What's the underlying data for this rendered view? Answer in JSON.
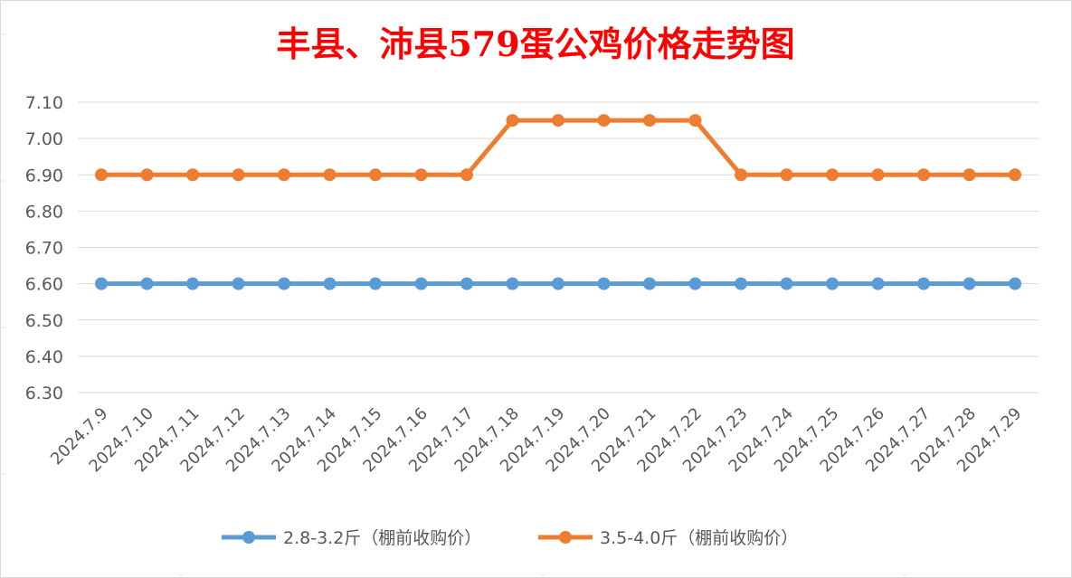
{
  "chart_data": {
    "type": "line",
    "title": "丰县、沛县579蛋公鸡价格走势图",
    "xlabel": "",
    "ylabel": "",
    "categories": [
      "2024.7.9",
      "2024.7.10",
      "2024.7.11",
      "2024.7.12",
      "2024.7.13",
      "2024.7.14",
      "2024.7.15",
      "2024.7.16",
      "2024.7.17",
      "2024.7.18",
      "2024.7.19",
      "2024.7.20",
      "2024.7.21",
      "2024.7.22",
      "2024.7.23",
      "2024.7.24",
      "2024.7.25",
      "2024.7.26",
      "2024.7.27",
      "2024.7.28",
      "2024.7.29"
    ],
    "series": [
      {
        "name": "2.8-3.2斤（棚前收购价）",
        "color": "#5b9bd5",
        "values": [
          6.6,
          6.6,
          6.6,
          6.6,
          6.6,
          6.6,
          6.6,
          6.6,
          6.6,
          6.6,
          6.6,
          6.6,
          6.6,
          6.6,
          6.6,
          6.6,
          6.6,
          6.6,
          6.6,
          6.6,
          6.6
        ]
      },
      {
        "name": "3.5-4.0斤（棚前收购价）",
        "color": "#ed7d31",
        "values": [
          6.9,
          6.9,
          6.9,
          6.9,
          6.9,
          6.9,
          6.9,
          6.9,
          6.9,
          7.05,
          7.05,
          7.05,
          7.05,
          7.05,
          6.9,
          6.9,
          6.9,
          6.9,
          6.9,
          6.9,
          6.9
        ]
      }
    ],
    "y_ticks": [
      "6.30",
      "6.40",
      "6.50",
      "6.60",
      "6.70",
      "6.80",
      "6.90",
      "7.00",
      "7.10"
    ],
    "ylim": [
      6.3,
      7.1
    ],
    "grid": true,
    "legend": "bottom"
  }
}
